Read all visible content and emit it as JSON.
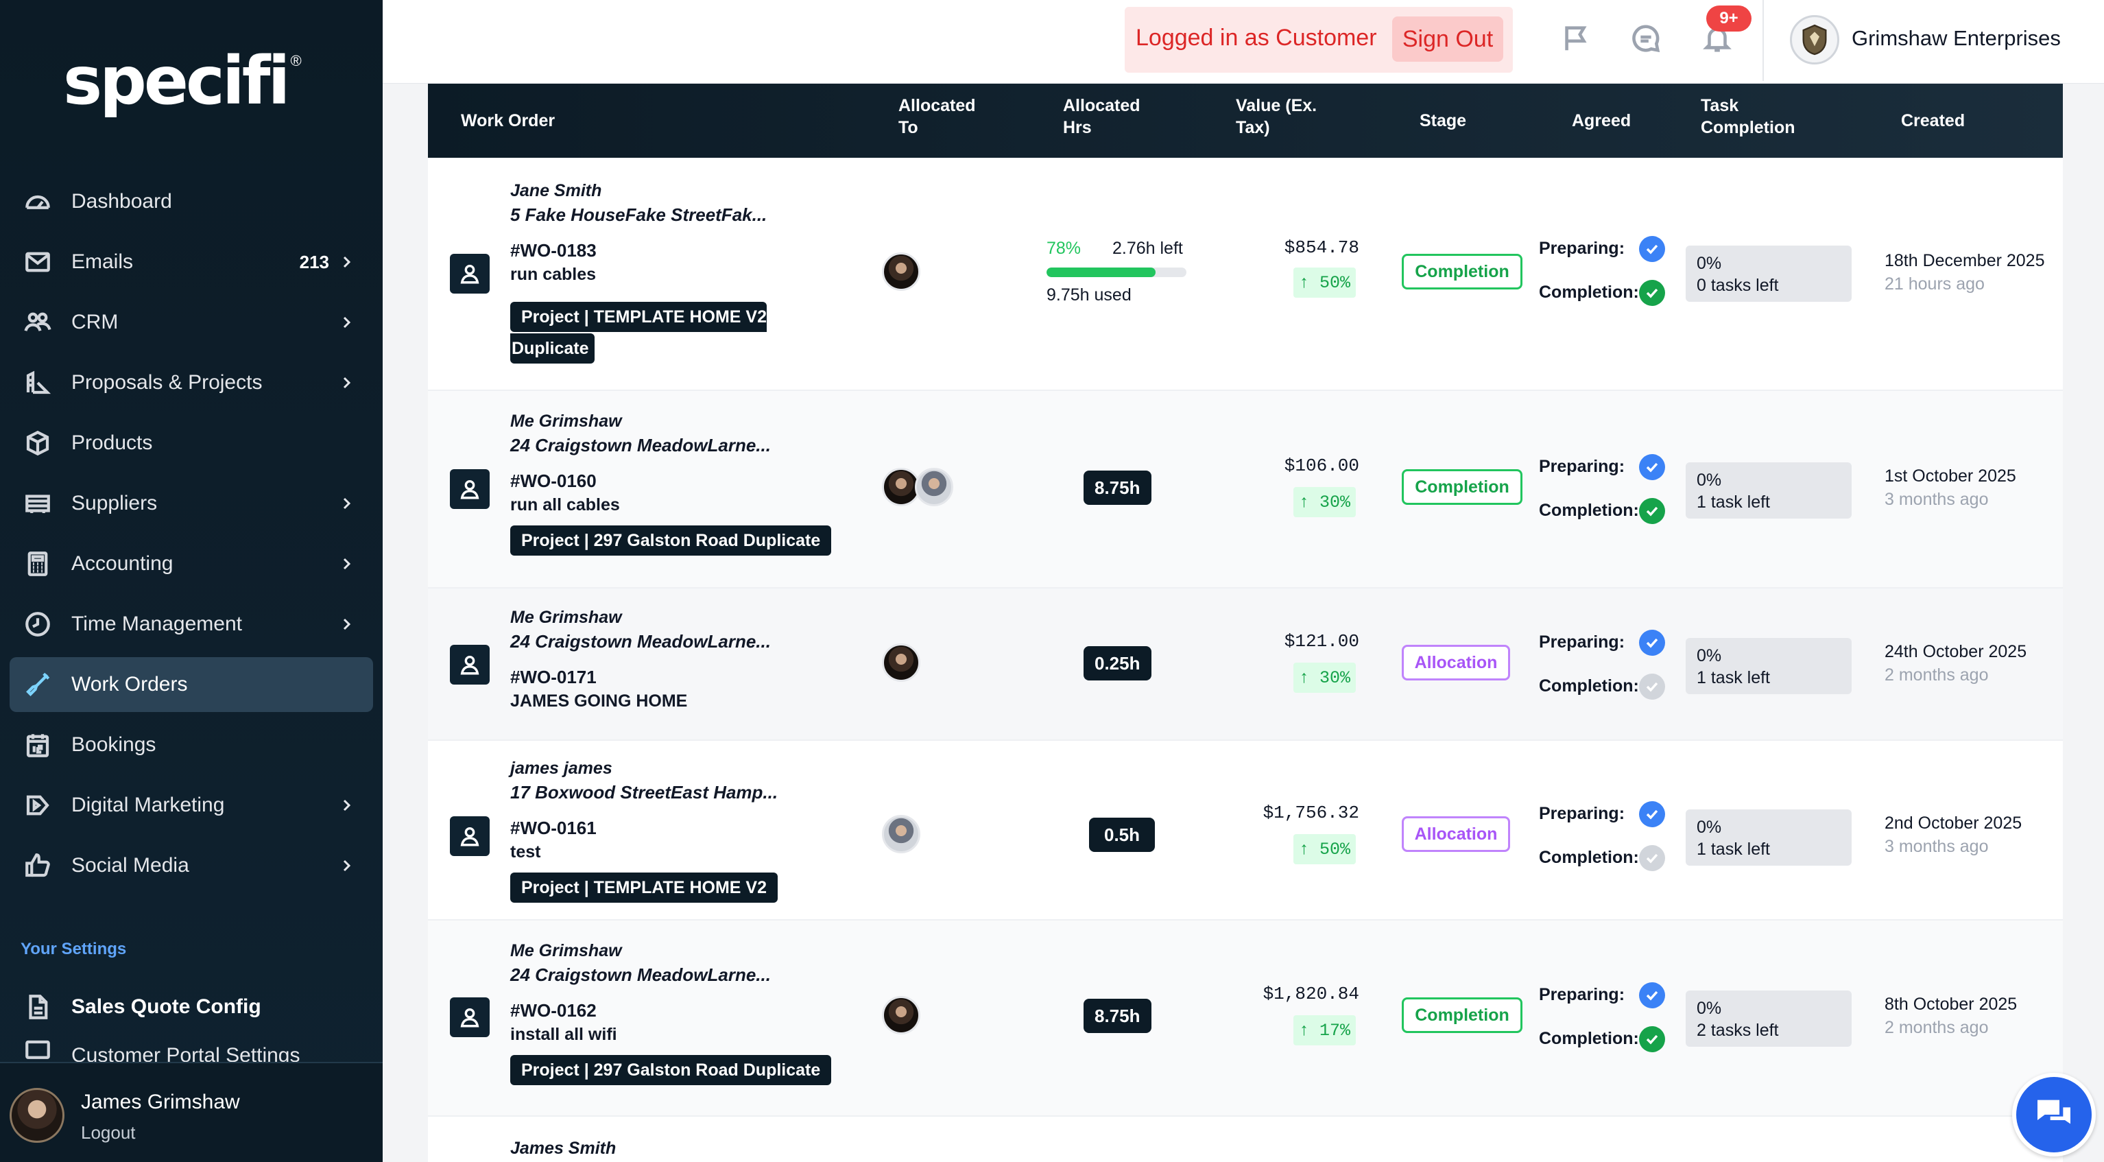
{
  "brand": {
    "logo_text": "specifi",
    "reg_mark": "®"
  },
  "sidebar": {
    "items": [
      {
        "label": "Dashboard",
        "icon": "dashboard-icon"
      },
      {
        "label": "Emails",
        "icon": "envelope-icon",
        "count": "213"
      },
      {
        "label": "CRM",
        "icon": "users-icon"
      },
      {
        "label": "Proposals & Projects",
        "icon": "ruler-icon"
      },
      {
        "label": "Products",
        "icon": "box-icon"
      },
      {
        "label": "Suppliers",
        "icon": "truck-icon"
      },
      {
        "label": "Accounting",
        "icon": "calculator-icon"
      },
      {
        "label": "Time Management",
        "icon": "clock-icon"
      },
      {
        "label": "Work Orders",
        "icon": "tool-icon",
        "active": true
      },
      {
        "label": "Bookings",
        "icon": "calendar-icon"
      },
      {
        "label": "Digital Marketing",
        "icon": "play-icon"
      },
      {
        "label": "Social Media",
        "icon": "thumbs-up-icon"
      }
    ],
    "settings_label": "Your Settings",
    "sales_quote": "Sales Quote Config",
    "portal_settings": "Customer Portal Settings",
    "user": {
      "name": "James Grimshaw",
      "logout": "Logout"
    }
  },
  "topbar": {
    "login_text": "Logged in as Customer",
    "signout": "Sign Out",
    "notif_count": "9+",
    "company": "Grimshaw Enterprises"
  },
  "table": {
    "headers": {
      "work_order": "Work Order",
      "allocated_to_1": "Allocated",
      "allocated_to_2": "To",
      "allocated_hrs_1": "Allocated",
      "allocated_hrs_2": "Hrs",
      "value_1": "Value (Ex.",
      "value_2": "Tax)",
      "stage": "Stage",
      "agreed": "Agreed",
      "task_1": "Task",
      "task_2": "Completion",
      "created": "Created"
    },
    "labels": {
      "preparing": "Preparing:",
      "completion": "Completion:"
    },
    "rows": [
      {
        "customer": "Jane Smith",
        "address": "5 Fake HouseFake StreetFak...",
        "wo": "#WO-0183",
        "desc": "run cables",
        "project_1": "Project | TEMPLATE HOME V2",
        "project_2": "Duplicate",
        "hrs_pct": "78%",
        "hrs_left": "2.76h left",
        "hrs_used": "9.75h used",
        "hrs_progress": 0.78,
        "value": "$854.78",
        "margin": "↑ 50%",
        "stage": "Completion",
        "task_pct": "0%",
        "task_left": "0 tasks left",
        "created": "18th December 2025",
        "ago": "21 hours ago"
      },
      {
        "customer": "Me Grimshaw",
        "address": "24 Craigstown MeadowLarne...",
        "wo": "#WO-0160",
        "desc": "run all cables",
        "project_1": "Project | 297 Galston Road Duplicate",
        "hrs": "8.75h",
        "value": "$106.00",
        "margin": "↑ 30%",
        "stage": "Completion",
        "task_pct": "0%",
        "task_left": "1 task left",
        "created": "1st October 2025",
        "ago": "3 months ago"
      },
      {
        "customer": "Me Grimshaw",
        "address": "24 Craigstown MeadowLarne...",
        "wo": "#WO-0171",
        "desc": "JAMES GOING HOME",
        "hrs": "0.25h",
        "value": "$121.00",
        "margin": "↑ 30%",
        "stage": "Allocation",
        "task_pct": "0%",
        "task_left": "1 task left",
        "created": "24th October 2025",
        "ago": "2 months ago"
      },
      {
        "customer": "james james",
        "address": "17 Boxwood StreetEast Hamp...",
        "wo": "#WO-0161",
        "desc": "test",
        "project_1": "Project | TEMPLATE HOME V2",
        "hrs": "0.5h",
        "value": "$1,756.32",
        "margin": "↑ 50%",
        "stage": "Allocation",
        "task_pct": "0%",
        "task_left": "1 task left",
        "created": "2nd October 2025",
        "ago": "3 months ago"
      },
      {
        "customer": "Me Grimshaw",
        "address": "24 Craigstown MeadowLarne...",
        "wo": "#WO-0162",
        "desc": "install all wifi",
        "project_1": "Project | 297 Galston Road Duplicate",
        "hrs": "8.75h",
        "value": "$1,820.84",
        "margin": "↑ 17%",
        "stage": "Completion",
        "task_pct": "0%",
        "task_left": "2 tasks left",
        "created": "8th October 2025",
        "ago": "2 months ago"
      },
      {
        "customer": "James Smith"
      }
    ]
  },
  "colors": {
    "sidebar_bg": "#0c1b26",
    "active_bg": "#2b4356",
    "completion": "#22c55e",
    "allocation": "#a855f7",
    "danger": "#dc2626",
    "accent_blue": "#3b82f6"
  }
}
